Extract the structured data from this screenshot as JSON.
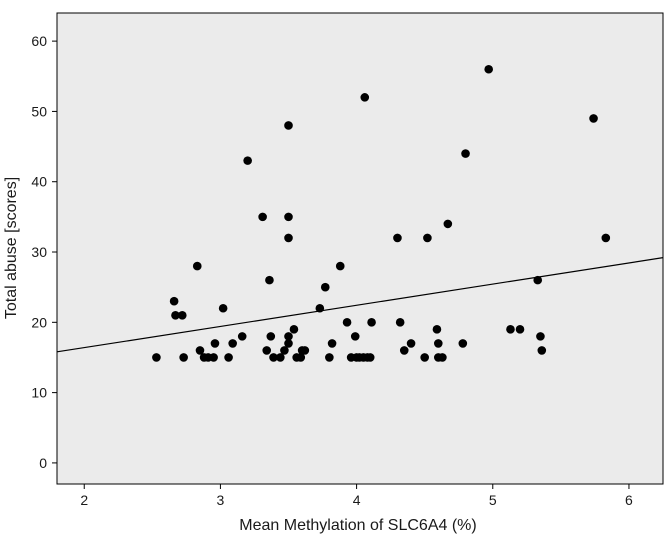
{
  "chart_data": {
    "type": "scatter",
    "title": "",
    "xlabel": "Mean Methylation of SLC6A4 (%)",
    "ylabel": "Total abuse [scores]",
    "xlim": [
      1.8,
      6.25
    ],
    "ylim": [
      -3,
      64
    ],
    "x_ticks": [
      2,
      3,
      4,
      5,
      6
    ],
    "y_ticks": [
      0,
      10,
      20,
      30,
      40,
      50,
      60
    ],
    "grid": false,
    "legend": "none",
    "plot_background": "#ebebeb",
    "marker_color": "#000000",
    "fit_line": {
      "type": "linear",
      "points": [
        [
          1.8,
          15.8
        ],
        [
          6.25,
          29.2
        ]
      ],
      "color": "#000000"
    },
    "series": [
      {
        "points": [
          [
            2.53,
            15
          ],
          [
            2.66,
            23
          ],
          [
            2.67,
            21
          ],
          [
            2.72,
            21
          ],
          [
            2.73,
            15
          ],
          [
            2.83,
            28
          ],
          [
            2.85,
            16
          ],
          [
            2.88,
            15
          ],
          [
            2.91,
            15
          ],
          [
            2.95,
            15
          ],
          [
            2.96,
            17
          ],
          [
            3.02,
            22
          ],
          [
            3.06,
            15
          ],
          [
            3.09,
            17
          ],
          [
            3.16,
            18
          ],
          [
            3.2,
            43
          ],
          [
            3.31,
            35
          ],
          [
            3.34,
            16
          ],
          [
            3.36,
            26
          ],
          [
            3.37,
            18
          ],
          [
            3.39,
            15
          ],
          [
            3.44,
            15
          ],
          [
            3.47,
            16
          ],
          [
            3.5,
            48
          ],
          [
            3.5,
            35
          ],
          [
            3.5,
            32
          ],
          [
            3.5,
            18
          ],
          [
            3.5,
            17
          ],
          [
            3.54,
            19
          ],
          [
            3.56,
            15
          ],
          [
            3.59,
            15
          ],
          [
            3.6,
            16
          ],
          [
            3.62,
            16
          ],
          [
            3.73,
            22
          ],
          [
            3.77,
            25
          ],
          [
            3.8,
            15
          ],
          [
            3.82,
            17
          ],
          [
            3.88,
            28
          ],
          [
            3.93,
            20
          ],
          [
            3.96,
            15
          ],
          [
            3.99,
            18
          ],
          [
            4.0,
            15
          ],
          [
            4.02,
            15
          ],
          [
            4.05,
            15
          ],
          [
            4.06,
            52
          ],
          [
            4.08,
            15
          ],
          [
            4.1,
            15
          ],
          [
            4.11,
            20
          ],
          [
            4.3,
            32
          ],
          [
            4.32,
            20
          ],
          [
            4.35,
            16
          ],
          [
            4.4,
            17
          ],
          [
            4.5,
            15
          ],
          [
            4.52,
            32
          ],
          [
            4.59,
            19
          ],
          [
            4.6,
            15
          ],
          [
            4.6,
            17
          ],
          [
            4.63,
            15
          ],
          [
            4.67,
            34
          ],
          [
            4.78,
            17
          ],
          [
            4.8,
            44
          ],
          [
            4.97,
            56
          ],
          [
            5.13,
            19
          ],
          [
            5.2,
            19
          ],
          [
            5.33,
            26
          ],
          [
            5.35,
            18
          ],
          [
            5.36,
            16
          ],
          [
            5.74,
            49
          ],
          [
            5.83,
            32
          ]
        ]
      }
    ]
  }
}
